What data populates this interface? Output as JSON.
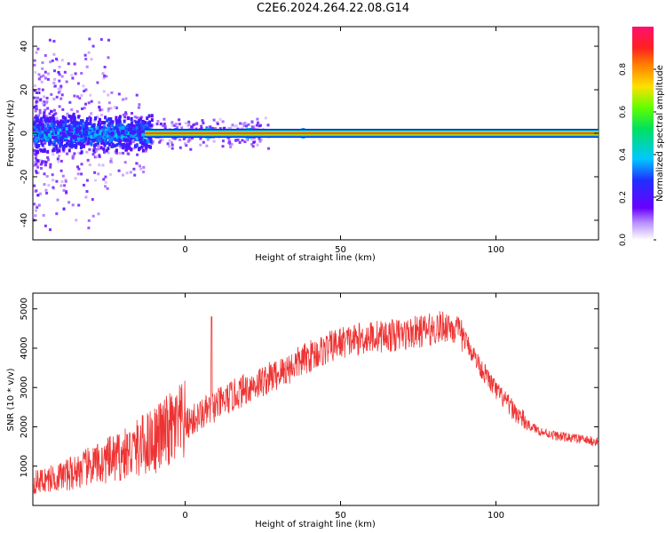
{
  "title": "C2E6.2024.264.22.08.G14",
  "chart_data": [
    {
      "type": "heatmap",
      "xlabel": "Height of straight line (km)",
      "ylabel": "Frequency (Hz)",
      "xlim": [
        -49,
        133
      ],
      "ylim": [
        -49,
        49
      ],
      "xticks": [
        0,
        50,
        100
      ],
      "yticks": [
        -40,
        -20,
        0,
        20,
        40
      ],
      "colorbar": {
        "label": "Normalized spectral amplitude",
        "range": [
          0,
          1
        ],
        "ticks": [
          "0.0",
          "0.2",
          "0.4",
          "0.6",
          "0.8"
        ],
        "colors": [
          "#ffffff",
          "#6a00ff",
          "#2030ff",
          "#00c8ff",
          "#00e060",
          "#60ff00",
          "#ffe000",
          "#ff8000",
          "#ff2020",
          "#ff1070"
        ]
      },
      "ridge_frequency": 0,
      "ridge_strength": 0.85,
      "ridge_onset_height": -13
    },
    {
      "type": "line",
      "xlabel": "Height of straight line (km)",
      "ylabel": "SNR (10 * v/v)",
      "xlim": [
        -49,
        133
      ],
      "ylim": [
        0,
        5400
      ],
      "xticks": [
        0,
        50,
        100
      ],
      "yticks": [
        1000,
        2000,
        3000,
        4000,
        5000
      ],
      "color": "#ee3333",
      "envelope_x": [
        -49,
        -40,
        -30,
        -20,
        -10,
        0,
        10,
        20,
        30,
        40,
        50,
        60,
        70,
        80,
        85,
        90,
        95,
        100,
        105,
        110,
        115,
        120,
        125,
        133
      ],
      "envelope_y": [
        550,
        700,
        950,
        1200,
        1600,
        2000,
        2500,
        2950,
        3300,
        3750,
        4100,
        4250,
        4300,
        4450,
        4550,
        4200,
        3500,
        2900,
        2450,
        2050,
        1850,
        1750,
        1700,
        1600
      ]
    }
  ]
}
